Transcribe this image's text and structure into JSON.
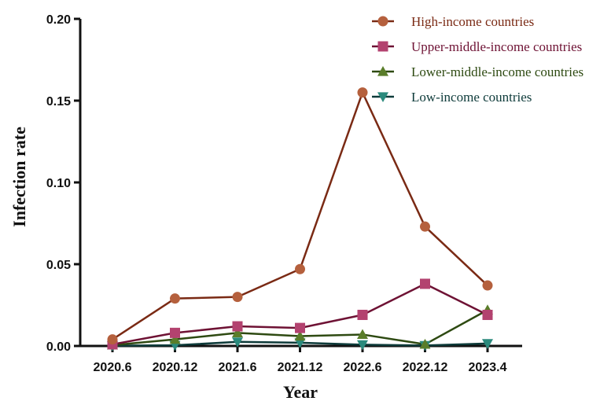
{
  "chart_data": {
    "type": "line",
    "title": "",
    "xlabel": "Year",
    "ylabel": "Infection rate",
    "categories": [
      "2020.6",
      "2020.12",
      "2021.6",
      "2021.12",
      "2022.6",
      "2022.12",
      "2023.4"
    ],
    "ylim": [
      0,
      0.2
    ],
    "yticks": [
      0.0,
      0.05,
      0.1,
      0.15,
      0.2
    ],
    "ytick_labels": [
      "0.00",
      "0.05",
      "0.10",
      "0.15",
      "0.20"
    ],
    "grid": false,
    "legend_position": "top-right",
    "series": [
      {
        "name": "High-income countries",
        "marker": "circle",
        "color": "#7a2a14",
        "marker_color": "#b5603d",
        "text_color": "#7a2a14",
        "values": [
          0.004,
          0.029,
          0.03,
          0.047,
          0.155,
          0.073,
          0.037
        ]
      },
      {
        "name": "Upper-middle-income countries",
        "marker": "square",
        "color": "#6e1234",
        "marker_color": "#b3426f",
        "text_color": "#6e1234",
        "values": [
          0.001,
          0.008,
          0.012,
          0.011,
          0.019,
          0.038,
          0.019
        ]
      },
      {
        "name": "Lower-middle-income countries",
        "marker": "triangle-up",
        "color": "#2e4a12",
        "marker_color": "#5a7d2a",
        "text_color": "#2e4a12",
        "values": [
          0.0005,
          0.004,
          0.008,
          0.006,
          0.007,
          0.001,
          0.022
        ]
      },
      {
        "name": "Low-income countries",
        "marker": "triangle-down",
        "color": "#0e3b3a",
        "marker_color": "#2b8a7d",
        "text_color": "#0e3b3a",
        "values": [
          0.0002,
          0.0004,
          0.0025,
          0.002,
          0.0008,
          0.0003,
          0.0015
        ]
      }
    ]
  }
}
